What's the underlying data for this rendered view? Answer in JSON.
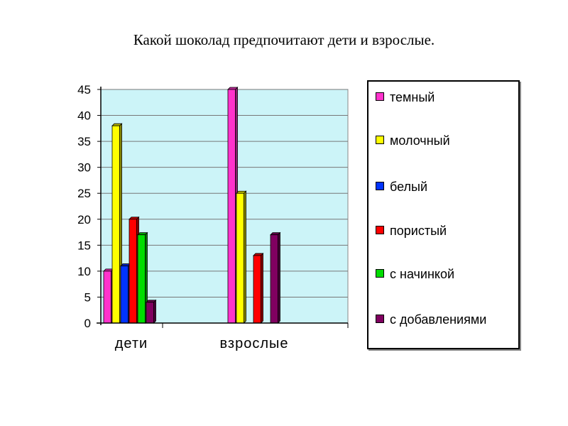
{
  "title": "Какой шоколад предпочитают дети и взрослые.",
  "chart_data": {
    "type": "bar",
    "title": "Какой шоколад предпочитают дети и взрослые.",
    "categories": [
      "дети",
      "взрослые"
    ],
    "ylim": [
      0,
      45
    ],
    "yticks": [
      "0",
      "5",
      "10",
      "15",
      "20",
      "25",
      "30",
      "35",
      "40",
      "45"
    ],
    "grid": true,
    "legend_position": "right",
    "series": [
      {
        "name": "темный",
        "color": "#ff33cc",
        "values": [
          10,
          45
        ]
      },
      {
        "name": "молочный",
        "color": "#ffff00",
        "values": [
          38,
          25
        ]
      },
      {
        "name": "белый",
        "color": "#0033ff",
        "values": [
          11,
          0
        ]
      },
      {
        "name": "пористый",
        "color": "#ff0000",
        "values": [
          20,
          13
        ]
      },
      {
        "name": "с начинкой",
        "color": "#00dd00",
        "values": [
          17,
          0
        ]
      },
      {
        "name": "с добавлениями",
        "color": "#800060",
        "values": [
          4,
          17
        ]
      }
    ]
  }
}
